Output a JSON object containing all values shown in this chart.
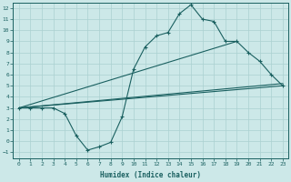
{
  "xlabel": "Humidex (Indice chaleur)",
  "xlim": [
    -0.5,
    23.5
  ],
  "ylim": [
    -1.5,
    12.5
  ],
  "xticks": [
    0,
    1,
    2,
    3,
    4,
    5,
    6,
    7,
    8,
    9,
    10,
    11,
    12,
    13,
    14,
    15,
    16,
    17,
    18,
    19,
    20,
    21,
    22,
    23
  ],
  "yticks": [
    -1,
    0,
    1,
    2,
    3,
    4,
    5,
    6,
    7,
    8,
    9,
    10,
    11,
    12
  ],
  "bg_color": "#cce8e8",
  "grid_color": "#aad0d0",
  "line_color": "#1a6060",
  "line1_x": [
    0,
    1,
    2,
    3,
    4,
    5,
    6,
    7,
    8,
    9,
    10,
    11,
    12,
    13,
    14,
    15,
    16,
    17,
    18,
    19,
    20,
    21,
    22,
    23
  ],
  "line1_y": [
    3.0,
    3.0,
    3.0,
    3.0,
    2.5,
    0.5,
    -0.8,
    -0.5,
    -0.1,
    2.2,
    6.5,
    8.5,
    9.5,
    9.8,
    11.5,
    12.3,
    11.0,
    10.8,
    9.0,
    9.0,
    8.0,
    7.2,
    6.0,
    5.0
  ],
  "line2_x": [
    0,
    23
  ],
  "line2_y": [
    3.0,
    5.0
  ],
  "line3_x": [
    0,
    23
  ],
  "line3_y": [
    3.0,
    5.2
  ],
  "line4_x": [
    0,
    19
  ],
  "line4_y": [
    3.0,
    9.0
  ]
}
